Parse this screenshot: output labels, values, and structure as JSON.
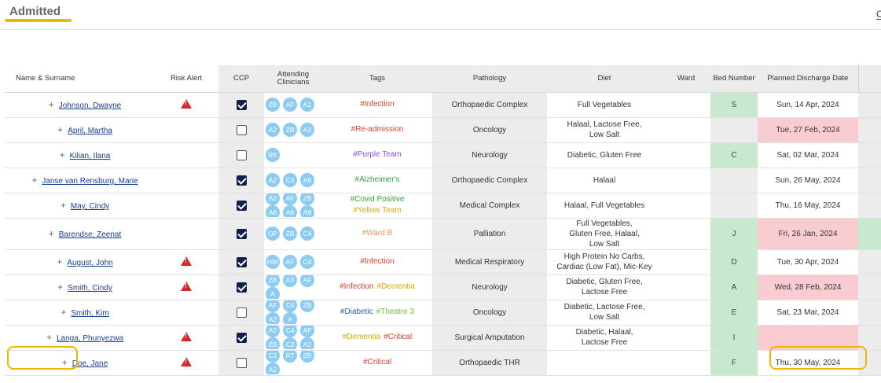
{
  "page": {
    "title": "Admitted",
    "corner_text": "C"
  },
  "columns": {
    "name": "Name & Surname",
    "risk": "Risk Alert",
    "ccp": "CCP",
    "clinicians": "Attending Clinicians",
    "tags": "Tags",
    "pathology": "Pathology",
    "diet": "Diet",
    "ward": "Ward",
    "bed": "Bed Number",
    "discharge": "Planned Discharge Date"
  },
  "colors": {
    "accent": "#f2b600",
    "risk": "#d62828",
    "chip": "#8ccbf2",
    "checkbox_on": "#0f1f4e",
    "bed_green": "#c9e9cf",
    "date_red": "#f9ccd2"
  },
  "rows": [
    {
      "name": "Johnson, Dwayne",
      "risk": true,
      "ccp": true,
      "clinicians": [
        "ZB",
        "AF",
        "A2"
      ],
      "tags": [
        {
          "text": "#Infection",
          "color": "#d9412b"
        }
      ],
      "pathology": "Orthopaedic Complex",
      "diet": [
        "Full Vegetables"
      ],
      "ward": "",
      "bed": "S",
      "bed_color": "green",
      "discharge": "Sun, 14 Apr, 2024",
      "discharge_color": ""
    },
    {
      "name": "April, Martha",
      "risk": false,
      "ccp": false,
      "clinicians": [
        "A2",
        "ZB",
        "A3"
      ],
      "tags": [
        {
          "text": "#Re-admission",
          "color": "#d9412b"
        }
      ],
      "pathology": "Oncology",
      "diet": [
        "Halaal, Lactose Free,",
        "Low Salt"
      ],
      "ward": "",
      "bed": "",
      "bed_color": "gray",
      "discharge": "Tue, 27 Feb, 2024",
      "discharge_color": "red"
    },
    {
      "name": "Kilian, Ilana",
      "risk": false,
      "ccp": false,
      "clinicians": [
        "RK"
      ],
      "tags": [
        {
          "text": "#Purple Team",
          "color": "#8b4fd8"
        }
      ],
      "pathology": "Neurology",
      "diet": [
        "Diabetic, Gluten Free"
      ],
      "ward": "",
      "bed": "C",
      "bed_color": "green",
      "discharge": "Sat, 02 Mar, 2024",
      "discharge_color": ""
    },
    {
      "name": "Janse van Rensburg, Marie",
      "risk": false,
      "ccp": true,
      "clinicians": [
        "A2",
        "C4",
        "A6"
      ],
      "tags": [
        {
          "text": "#Alzheimer's",
          "color": "#3aa23a"
        }
      ],
      "pathology": "Orthopaedic Complex",
      "diet": [
        "Halaal"
      ],
      "ward": "",
      "bed": "",
      "bed_color": "gray",
      "discharge": "Sun, 26 May, 2024",
      "discharge_color": ""
    },
    {
      "name": "May, Cindy",
      "risk": false,
      "ccp": true,
      "clinicians": [
        "A2",
        "AF",
        "ZB",
        "A6",
        "A8",
        "A9"
      ],
      "tags": [
        {
          "text": "#Covid Positive",
          "color": "#3aa23a"
        },
        {
          "text": "#Yellow Team",
          "color": "#e0a800"
        }
      ],
      "pathology": "Medical Complex",
      "diet": [
        "Halaal, Full Vegetables"
      ],
      "ward": "",
      "bed": "",
      "bed_color": "gray",
      "discharge": "Thu, 16 May, 2024",
      "discharge_color": ""
    },
    {
      "name": "Barendse, Zeenat",
      "risk": false,
      "ccp": true,
      "clinicians": [
        "OP",
        "ZB",
        "C4"
      ],
      "tags": [
        {
          "text": "#Ward B",
          "color": "#e8955a"
        }
      ],
      "pathology": "Palliation",
      "diet": [
        "Full Vegetables,",
        "Gluten Free, Halaal,",
        "Low Salt"
      ],
      "ward": "",
      "bed": "J",
      "bed_color": "green",
      "discharge": "Fri, 26 Jan, 2024",
      "discharge_color": "red",
      "stub": "green"
    },
    {
      "name": "August, John",
      "risk": true,
      "ccp": true,
      "clinicians": [
        "HW",
        "AF",
        "C4"
      ],
      "tags": [
        {
          "text": "#Infection",
          "color": "#d9412b"
        }
      ],
      "pathology": "Medical Respiratory",
      "diet": [
        "High Protein No Carbs,",
        "Cardiac (Low Fat), Mic-Key"
      ],
      "ward": "",
      "bed": "D",
      "bed_color": "green",
      "discharge": "Tue, 30 Apr, 2024",
      "discharge_color": ""
    },
    {
      "name": "Smith, Cindy",
      "risk": true,
      "ccp": true,
      "clinicians": [
        "ZB",
        "A3",
        "AF",
        "A"
      ],
      "tags": [
        {
          "text": "#Infection",
          "color": "#d9412b"
        },
        {
          "text": "#Dementia",
          "color": "#e0a800"
        }
      ],
      "pathology": "Neurology",
      "diet": [
        "Diabetic, Gluten Free,",
        "Lactose Free"
      ],
      "ward": "",
      "bed": "A",
      "bed_color": "green",
      "discharge": "Wed, 28 Feb, 2024",
      "discharge_color": "red"
    },
    {
      "name": "Smith, Kim",
      "risk": false,
      "ccp": false,
      "clinicians": [
        "AF",
        "C4",
        "ZB",
        "A2",
        "A"
      ],
      "tags": [
        {
          "text": "#Diabetic",
          "color": "#2d5ca8"
        },
        {
          "text": "#Theatre 3",
          "color": "#7fb82a"
        }
      ],
      "pathology": "Oncology",
      "diet": [
        "Diabetic, Lactose Free,",
        "Low Salt"
      ],
      "ward": "",
      "bed": "E",
      "bed_color": "green",
      "discharge": "Sat, 23 Mar, 2024",
      "discharge_color": ""
    },
    {
      "name": "Langa, Phunyezwa",
      "risk": true,
      "ccp": true,
      "clinicians": [
        "A2",
        "C4",
        "AF",
        "ZB",
        "C2",
        "A2"
      ],
      "tags": [
        {
          "text": "#Dementia",
          "color": "#e0a800"
        },
        {
          "text": "#Critical",
          "color": "#d9412b"
        }
      ],
      "pathology": "Surgical Amputation",
      "diet": [
        "Diabetic, Halaal,",
        "Lactose Free"
      ],
      "ward": "",
      "bed": "I",
      "bed_color": "green",
      "discharge": "",
      "discharge_color": "red"
    },
    {
      "name": "Doe, Jane",
      "risk": true,
      "ccp": false,
      "clinicians": [
        "C2",
        "RT",
        "ZB",
        "A2"
      ],
      "tags": [
        {
          "text": "#Critical",
          "color": "#d9412b"
        }
      ],
      "pathology": "Orthopaedic THR",
      "diet": [],
      "ward": "",
      "bed": "F",
      "bed_color": "green",
      "discharge": "Thu, 30 May, 2024",
      "discharge_color": ""
    }
  ]
}
